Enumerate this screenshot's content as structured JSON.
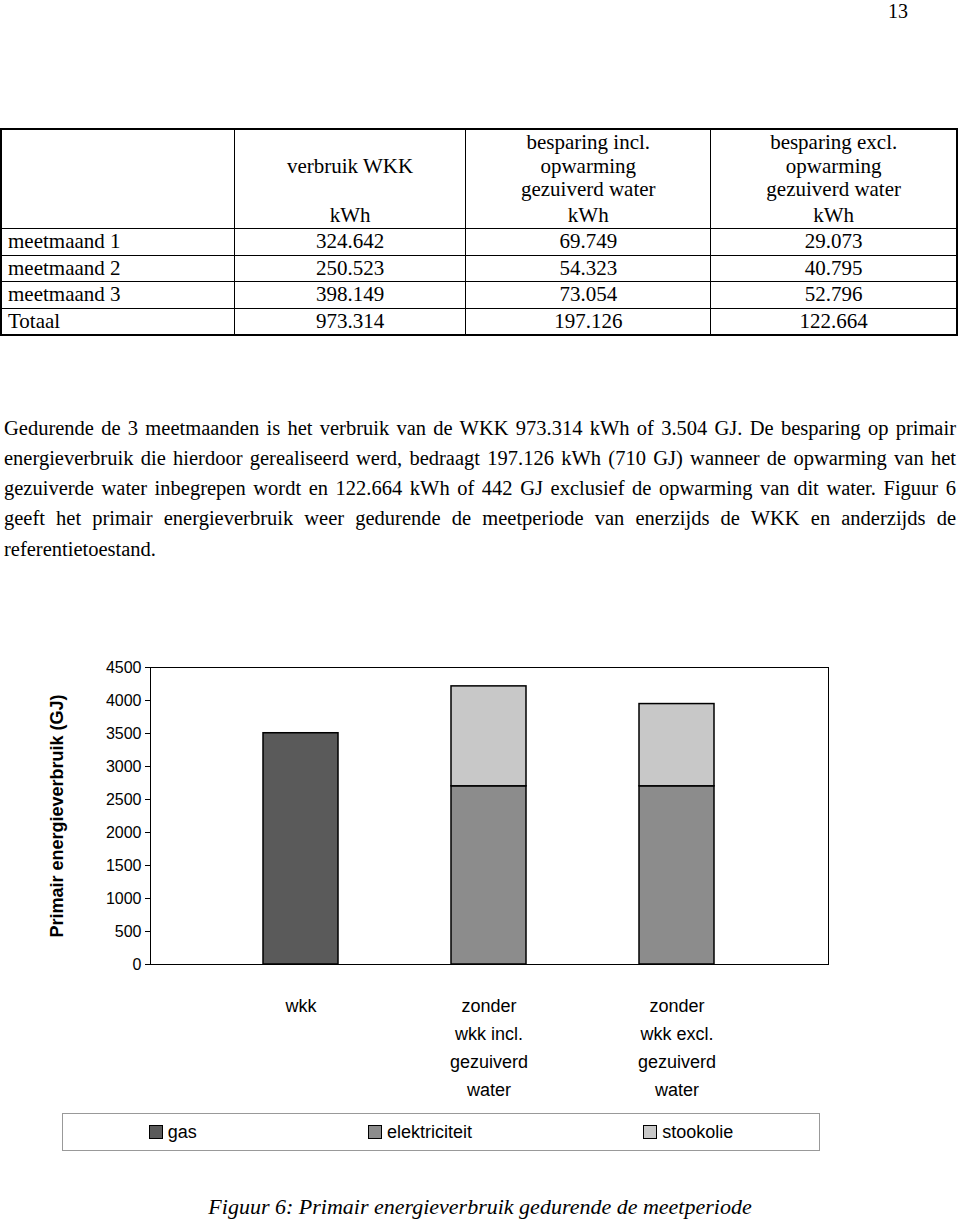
{
  "page_number": "13",
  "table": {
    "header": [
      "",
      "verbruik WKK",
      "besparing incl.\nopwarming\ngezuiverd water",
      "besparing excl.\nopwarming\ngezuiverd water"
    ],
    "units": [
      "",
      "kWh",
      "kWh",
      "kWh"
    ],
    "rows": [
      [
        "meetmaand 1",
        "324.642",
        "69.749",
        "29.073"
      ],
      [
        "meetmaand 2",
        "250.523",
        "54.323",
        "40.795"
      ],
      [
        "meetmaand 3",
        "398.149",
        "73.054",
        "52.796"
      ],
      [
        "Totaal",
        "973.314",
        "197.126",
        "122.664"
      ]
    ]
  },
  "paragraph": "Gedurende de 3 meetmaanden is het verbruik van de WKK 973.314 kWh of 3.504 GJ. De besparing op primair energieverbruik die hierdoor gerealiseerd werd, bedraagt 197.126 kWh (710 GJ) wanneer de opwarming van het gezuiverde water inbegrepen wordt en 122.664 kWh of 442 GJ exclusief de opwarming van dit water. Figuur 6 geeft het primair energieverbruik weer gedurende de meetperiode van enerzijds de WKK en anderzijds de referentietoestand.",
  "chart_data": {
    "type": "bar",
    "stacked": true,
    "y_label": "Primair energieverbruik (GJ)",
    "categories": [
      "wkk",
      "zonder\nwkk incl.\ngezuiverd\nwater",
      "zonder\nwkk excl.\ngezuiverd\nwater"
    ],
    "series": [
      {
        "name": "gas",
        "color": "#5a5a5a",
        "values": [
          3504,
          0,
          0
        ]
      },
      {
        "name": "elektriciteit",
        "color": "#8c8c8c",
        "values": [
          0,
          2700,
          2700
        ]
      },
      {
        "name": "stookolie",
        "color": "#c8c8c8",
        "values": [
          0,
          1514,
          1246
        ]
      }
    ],
    "ylim": [
      0,
      4500
    ],
    "yticks": [
      0,
      500,
      1000,
      1500,
      2000,
      2500,
      3000,
      3500,
      4000,
      4500
    ],
    "legend": "bottom"
  },
  "caption": "Figuur 6: Primair energieverbruik gedurende de meetperiode"
}
